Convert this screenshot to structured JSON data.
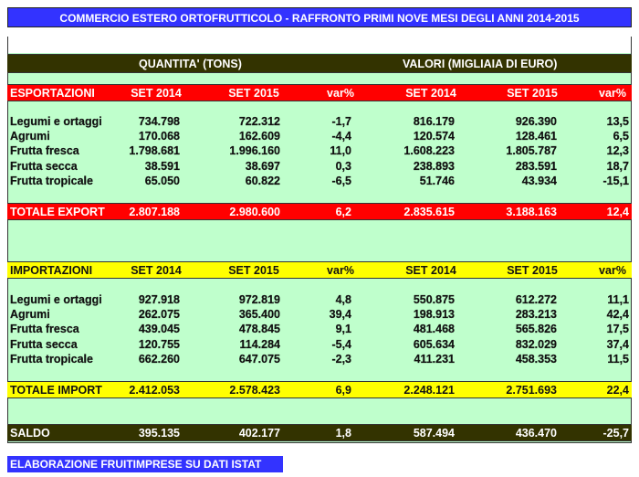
{
  "title": "COMMERCIO ESTERO ORTOFRUTTICOLO - RAFFRONTO PRIMI NOVE MESI DEGLI ANNI 2014-2015",
  "section_headers": {
    "quantity": "QUANTITA' (TONS)",
    "value": "VALORI (MIGLIAIA DI EURO)"
  },
  "export": {
    "header": [
      "ESPORTAZIONI",
      "SET 2014",
      "SET 2015",
      "var%",
      "SET 2014",
      "SET 2015",
      "var%"
    ],
    "rows": [
      [
        "Legumi e ortaggi",
        "734.798",
        "722.312",
        "-1,7",
        "816.179",
        "926.390",
        "13,5"
      ],
      [
        "Agrumi",
        "170.068",
        "162.609",
        "-4,4",
        "120.574",
        "128.461",
        "6,5"
      ],
      [
        "Frutta fresca",
        "1.798.681",
        "1.996.160",
        "11,0",
        "1.608.223",
        "1.805.787",
        "12,3"
      ],
      [
        "Frutta secca",
        "38.591",
        "38.697",
        "0,3",
        "238.893",
        "283.591",
        "18,7"
      ],
      [
        "Frutta tropicale",
        "65.050",
        "60.822",
        "-6,5",
        "51.746",
        "43.934",
        "-15,1"
      ]
    ],
    "total": [
      "TOTALE EXPORT",
      "2.807.188",
      "2.980.600",
      "6,2",
      "2.835.615",
      "3.188.163",
      "12,4"
    ]
  },
  "import": {
    "header": [
      "IMPORTAZIONI",
      "SET 2014",
      "SET 2015",
      "var%",
      "SET 2014",
      "SET 2015",
      "var%"
    ],
    "rows": [
      [
        "Legumi e ortaggi",
        "927.918",
        "972.819",
        "4,8",
        "550.875",
        "612.272",
        "11,1"
      ],
      [
        "Agrumi",
        "262.075",
        "365.400",
        "39,4",
        "198.913",
        "283.213",
        "42,4"
      ],
      [
        "Frutta fresca",
        "439.045",
        "478.845",
        "9,1",
        "481.468",
        "565.826",
        "17,5"
      ],
      [
        "Frutta secca",
        "120.755",
        "114.284",
        "-5,4",
        "605.634",
        "832.029",
        "37,4"
      ],
      [
        "Frutta tropicale",
        "662.260",
        "647.075",
        "-2,3",
        "411.231",
        "458.353",
        "11,5"
      ]
    ],
    "total": [
      "TOTALE IMPORT",
      "2.412.053",
      "2.578.423",
      "6,9",
      "2.248.121",
      "2.751.693",
      "22,4"
    ]
  },
  "saldo": [
    "SALDO",
    "395.135",
    "402.177",
    "1,8",
    "587.494",
    "436.470",
    "-25,7"
  ],
  "footer": "ELABORAZIONE FRUITIMPRESE SU DATI ISTAT",
  "colors": {
    "title_bg": "#3333ff",
    "export_bg": "#ff0000",
    "import_bg": "#ffff00",
    "dark_bg": "#333300",
    "sheet_bg": "#bfffcc"
  }
}
